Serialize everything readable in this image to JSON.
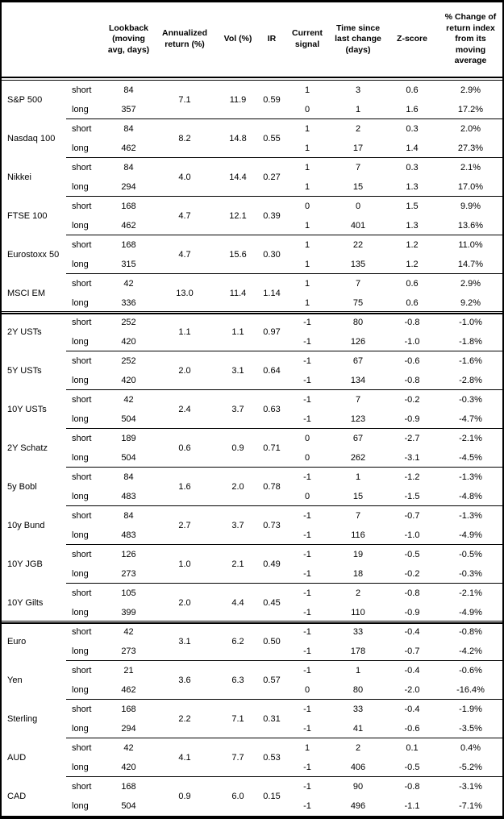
{
  "table": {
    "columns": [
      "",
      "",
      "Lookback\n(moving\navg, days)",
      "Annualized\nreturn (%)",
      "Vol (%)",
      "IR",
      "Current\nsignal",
      "Time since\nlast change\n(days)",
      "Z-score",
      "% Change of\nreturn index\nfrom its\nmoving\naverage"
    ],
    "horizon_labels": {
      "short": "short",
      "long": "long"
    },
    "groups": [
      {
        "asset": "S&P 500",
        "annualized_return": "7.1",
        "vol": "11.9",
        "ir": "0.59",
        "section_end": false,
        "short": {
          "lookback": "84",
          "signal": "1",
          "time_since": "3",
          "z_score": "0.6",
          "pct_change": "2.9%"
        },
        "long": {
          "lookback": "357",
          "signal": "0",
          "time_since": "1",
          "z_score": "1.6",
          "pct_change": "17.2%"
        }
      },
      {
        "asset": "Nasdaq 100",
        "annualized_return": "8.2",
        "vol": "14.8",
        "ir": "0.55",
        "section_end": false,
        "short": {
          "lookback": "84",
          "signal": "1",
          "time_since": "2",
          "z_score": "0.3",
          "pct_change": "2.0%"
        },
        "long": {
          "lookback": "462",
          "signal": "1",
          "time_since": "17",
          "z_score": "1.4",
          "pct_change": "27.3%"
        }
      },
      {
        "asset": "Nikkei",
        "annualized_return": "4.0",
        "vol": "14.4",
        "ir": "0.27",
        "section_end": false,
        "short": {
          "lookback": "84",
          "signal": "1",
          "time_since": "7",
          "z_score": "0.3",
          "pct_change": "2.1%"
        },
        "long": {
          "lookback": "294",
          "signal": "1",
          "time_since": "15",
          "z_score": "1.3",
          "pct_change": "17.0%"
        }
      },
      {
        "asset": "FTSE 100",
        "annualized_return": "4.7",
        "vol": "12.1",
        "ir": "0.39",
        "section_end": false,
        "short": {
          "lookback": "168",
          "signal": "0",
          "time_since": "0",
          "z_score": "1.5",
          "pct_change": "9.9%"
        },
        "long": {
          "lookback": "462",
          "signal": "1",
          "time_since": "401",
          "z_score": "1.3",
          "pct_change": "13.6%"
        }
      },
      {
        "asset": "Eurostoxx 50",
        "annualized_return": "4.7",
        "vol": "15.6",
        "ir": "0.30",
        "section_end": false,
        "short": {
          "lookback": "168",
          "signal": "1",
          "time_since": "22",
          "z_score": "1.2",
          "pct_change": "11.0%"
        },
        "long": {
          "lookback": "315",
          "signal": "1",
          "time_since": "135",
          "z_score": "1.2",
          "pct_change": "14.7%"
        }
      },
      {
        "asset": "MSCI EM",
        "annualized_return": "13.0",
        "vol": "11.4",
        "ir": "1.14",
        "section_end": true,
        "short": {
          "lookback": "42",
          "signal": "1",
          "time_since": "7",
          "z_score": "0.6",
          "pct_change": "2.9%"
        },
        "long": {
          "lookback": "336",
          "signal": "1",
          "time_since": "75",
          "z_score": "0.6",
          "pct_change": "9.2%"
        }
      },
      {
        "asset": "2Y USTs",
        "annualized_return": "1.1",
        "vol": "1.1",
        "ir": "0.97",
        "section_end": false,
        "short": {
          "lookback": "252",
          "signal": "-1",
          "time_since": "80",
          "z_score": "-0.8",
          "pct_change": "-1.0%"
        },
        "long": {
          "lookback": "420",
          "signal": "-1",
          "time_since": "126",
          "z_score": "-1.0",
          "pct_change": "-1.8%"
        }
      },
      {
        "asset": "5Y USTs",
        "annualized_return": "2.0",
        "vol": "3.1",
        "ir": "0.64",
        "section_end": false,
        "short": {
          "lookback": "252",
          "signal": "-1",
          "time_since": "67",
          "z_score": "-0.6",
          "pct_change": "-1.6%"
        },
        "long": {
          "lookback": "420",
          "signal": "-1",
          "time_since": "134",
          "z_score": "-0.8",
          "pct_change": "-2.8%"
        }
      },
      {
        "asset": "10Y USTs",
        "annualized_return": "2.4",
        "vol": "3.7",
        "ir": "0.63",
        "section_end": false,
        "short": {
          "lookback": "42",
          "signal": "-1",
          "time_since": "7",
          "z_score": "-0.2",
          "pct_change": "-0.3%"
        },
        "long": {
          "lookback": "504",
          "signal": "-1",
          "time_since": "123",
          "z_score": "-0.9",
          "pct_change": "-4.7%"
        }
      },
      {
        "asset": "2Y Schatz",
        "annualized_return": "0.6",
        "vol": "0.9",
        "ir": "0.71",
        "section_end": false,
        "short": {
          "lookback": "189",
          "signal": "0",
          "time_since": "67",
          "z_score": "-2.7",
          "pct_change": "-2.1%"
        },
        "long": {
          "lookback": "504",
          "signal": "0",
          "time_since": "262",
          "z_score": "-3.1",
          "pct_change": "-4.5%"
        }
      },
      {
        "asset": "5y Bobl",
        "annualized_return": "1.6",
        "vol": "2.0",
        "ir": "0.78",
        "section_end": false,
        "short": {
          "lookback": "84",
          "signal": "-1",
          "time_since": "1",
          "z_score": "-1.2",
          "pct_change": "-1.3%"
        },
        "long": {
          "lookback": "483",
          "signal": "0",
          "time_since": "15",
          "z_score": "-1.5",
          "pct_change": "-4.8%"
        }
      },
      {
        "asset": "10y Bund",
        "annualized_return": "2.7",
        "vol": "3.7",
        "ir": "0.73",
        "section_end": false,
        "short": {
          "lookback": "84",
          "signal": "-1",
          "time_since": "7",
          "z_score": "-0.7",
          "pct_change": "-1.3%"
        },
        "long": {
          "lookback": "483",
          "signal": "-1",
          "time_since": "116",
          "z_score": "-1.0",
          "pct_change": "-4.9%"
        }
      },
      {
        "asset": "10Y JGB",
        "annualized_return": "1.0",
        "vol": "2.1",
        "ir": "0.49",
        "section_end": false,
        "short": {
          "lookback": "126",
          "signal": "-1",
          "time_since": "19",
          "z_score": "-0.5",
          "pct_change": "-0.5%"
        },
        "long": {
          "lookback": "273",
          "signal": "-1",
          "time_since": "18",
          "z_score": "-0.2",
          "pct_change": "-0.3%"
        }
      },
      {
        "asset": "10Y Gilts",
        "annualized_return": "2.0",
        "vol": "4.4",
        "ir": "0.45",
        "section_end": true,
        "short": {
          "lookback": "105",
          "signal": "-1",
          "time_since": "2",
          "z_score": "-0.8",
          "pct_change": "-2.1%"
        },
        "long": {
          "lookback": "399",
          "signal": "-1",
          "time_since": "110",
          "z_score": "-0.9",
          "pct_change": "-4.9%"
        }
      },
      {
        "asset": "Euro",
        "annualized_return": "3.1",
        "vol": "6.2",
        "ir": "0.50",
        "section_end": false,
        "short": {
          "lookback": "42",
          "signal": "-1",
          "time_since": "33",
          "z_score": "-0.4",
          "pct_change": "-0.8%"
        },
        "long": {
          "lookback": "273",
          "signal": "-1",
          "time_since": "178",
          "z_score": "-0.7",
          "pct_change": "-4.2%"
        }
      },
      {
        "asset": "Yen",
        "annualized_return": "3.6",
        "vol": "6.3",
        "ir": "0.57",
        "section_end": false,
        "short": {
          "lookback": "21",
          "signal": "-1",
          "time_since": "1",
          "z_score": "-0.4",
          "pct_change": "-0.6%"
        },
        "long": {
          "lookback": "462",
          "signal": "0",
          "time_since": "80",
          "z_score": "-2.0",
          "pct_change": "-16.4%"
        }
      },
      {
        "asset": "Sterling",
        "annualized_return": "2.2",
        "vol": "7.1",
        "ir": "0.31",
        "section_end": false,
        "short": {
          "lookback": "168",
          "signal": "-1",
          "time_since": "33",
          "z_score": "-0.4",
          "pct_change": "-1.9%"
        },
        "long": {
          "lookback": "294",
          "signal": "-1",
          "time_since": "41",
          "z_score": "-0.6",
          "pct_change": "-3.5%"
        }
      },
      {
        "asset": "AUD",
        "annualized_return": "4.1",
        "vol": "7.7",
        "ir": "0.53",
        "section_end": false,
        "short": {
          "lookback": "42",
          "signal": "1",
          "time_since": "2",
          "z_score": "0.1",
          "pct_change": "0.4%"
        },
        "long": {
          "lookback": "420",
          "signal": "-1",
          "time_since": "406",
          "z_score": "-0.5",
          "pct_change": "-5.2%"
        }
      },
      {
        "asset": "CAD",
        "annualized_return": "0.9",
        "vol": "6.0",
        "ir": "0.15",
        "section_end": false,
        "short": {
          "lookback": "168",
          "signal": "-1",
          "time_since": "90",
          "z_score": "-0.8",
          "pct_change": "-3.1%"
        },
        "long": {
          "lookback": "504",
          "signal": "-1",
          "time_since": "496",
          "z_score": "-1.1",
          "pct_change": "-7.1%"
        }
      }
    ]
  }
}
